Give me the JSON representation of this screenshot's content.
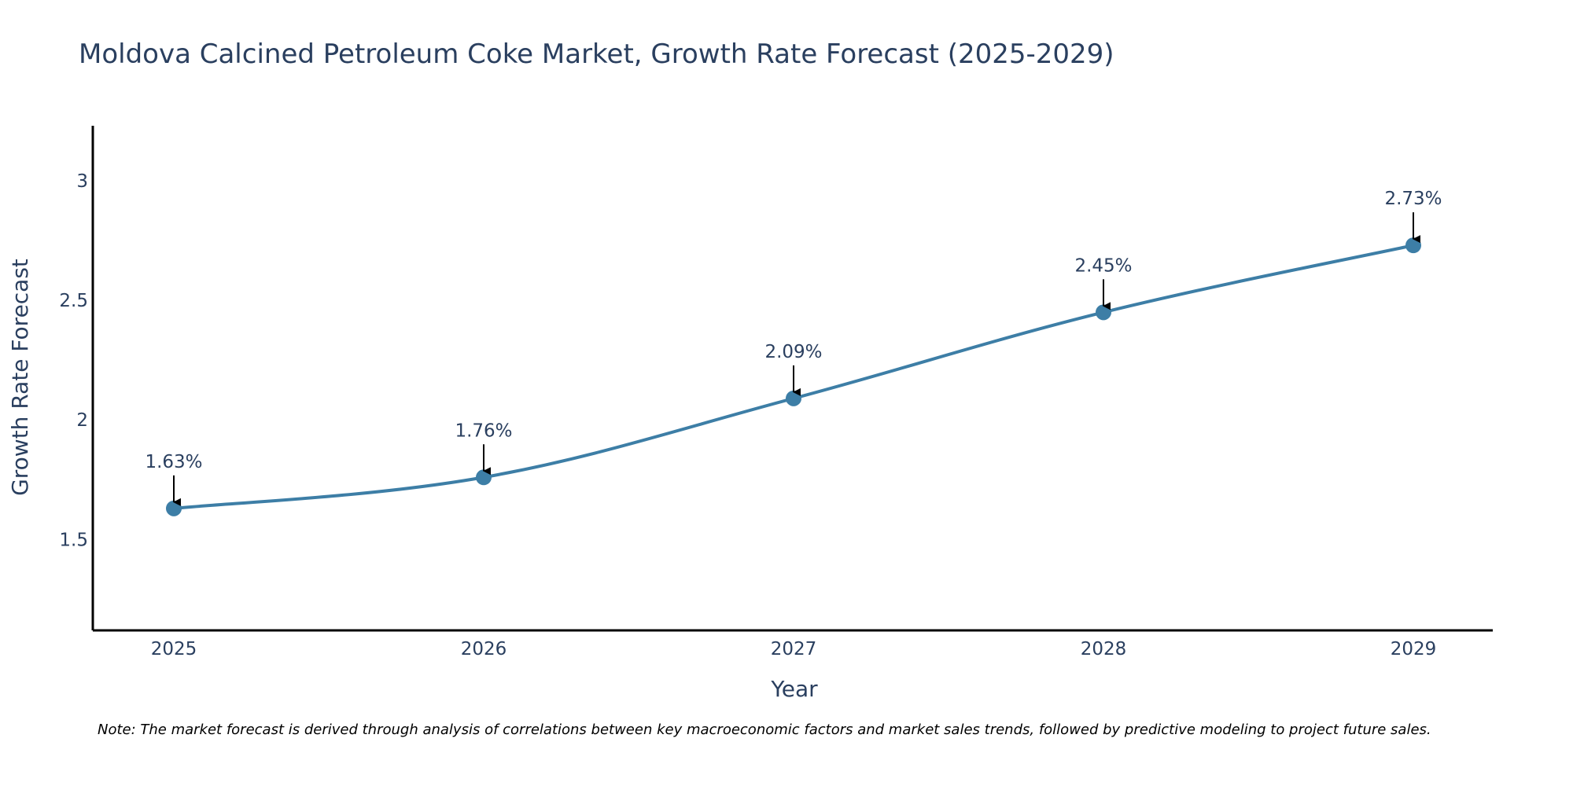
{
  "chart_data": {
    "type": "line",
    "title": "Moldova Calcined Petroleum Coke Market, Growth Rate Forecast (2025-2029)",
    "xlabel": "Year",
    "ylabel": "Growth Rate Forecast",
    "categories": [
      "2025",
      "2026",
      "2027",
      "2028",
      "2029"
    ],
    "series": [
      {
        "name": "Growth Rate Forecast",
        "values": [
          1.63,
          1.76,
          2.09,
          2.45,
          2.73
        ],
        "color": "#3d7ea6"
      }
    ],
    "data_labels": [
      "1.63%",
      "1.76%",
      "2.09%",
      "2.45%",
      "2.73%"
    ],
    "yticks": [
      1.5,
      2,
      2.5,
      3
    ],
    "ytick_labels": [
      "1.5",
      "2",
      "2.5",
      "3"
    ],
    "ylim": [
      1.12,
      3.23
    ],
    "grid": false,
    "legend": "none",
    "note": "Note: The market forecast is derived through analysis of correlations between key macroeconomic factors and market sales trends, followed by predictive modeling to project future sales."
  },
  "colors": {
    "line": "#3d7ea6",
    "marker": "#3d7ea6",
    "axis": "#000000",
    "text": "#2a3f5f",
    "arrow": "#000000"
  }
}
